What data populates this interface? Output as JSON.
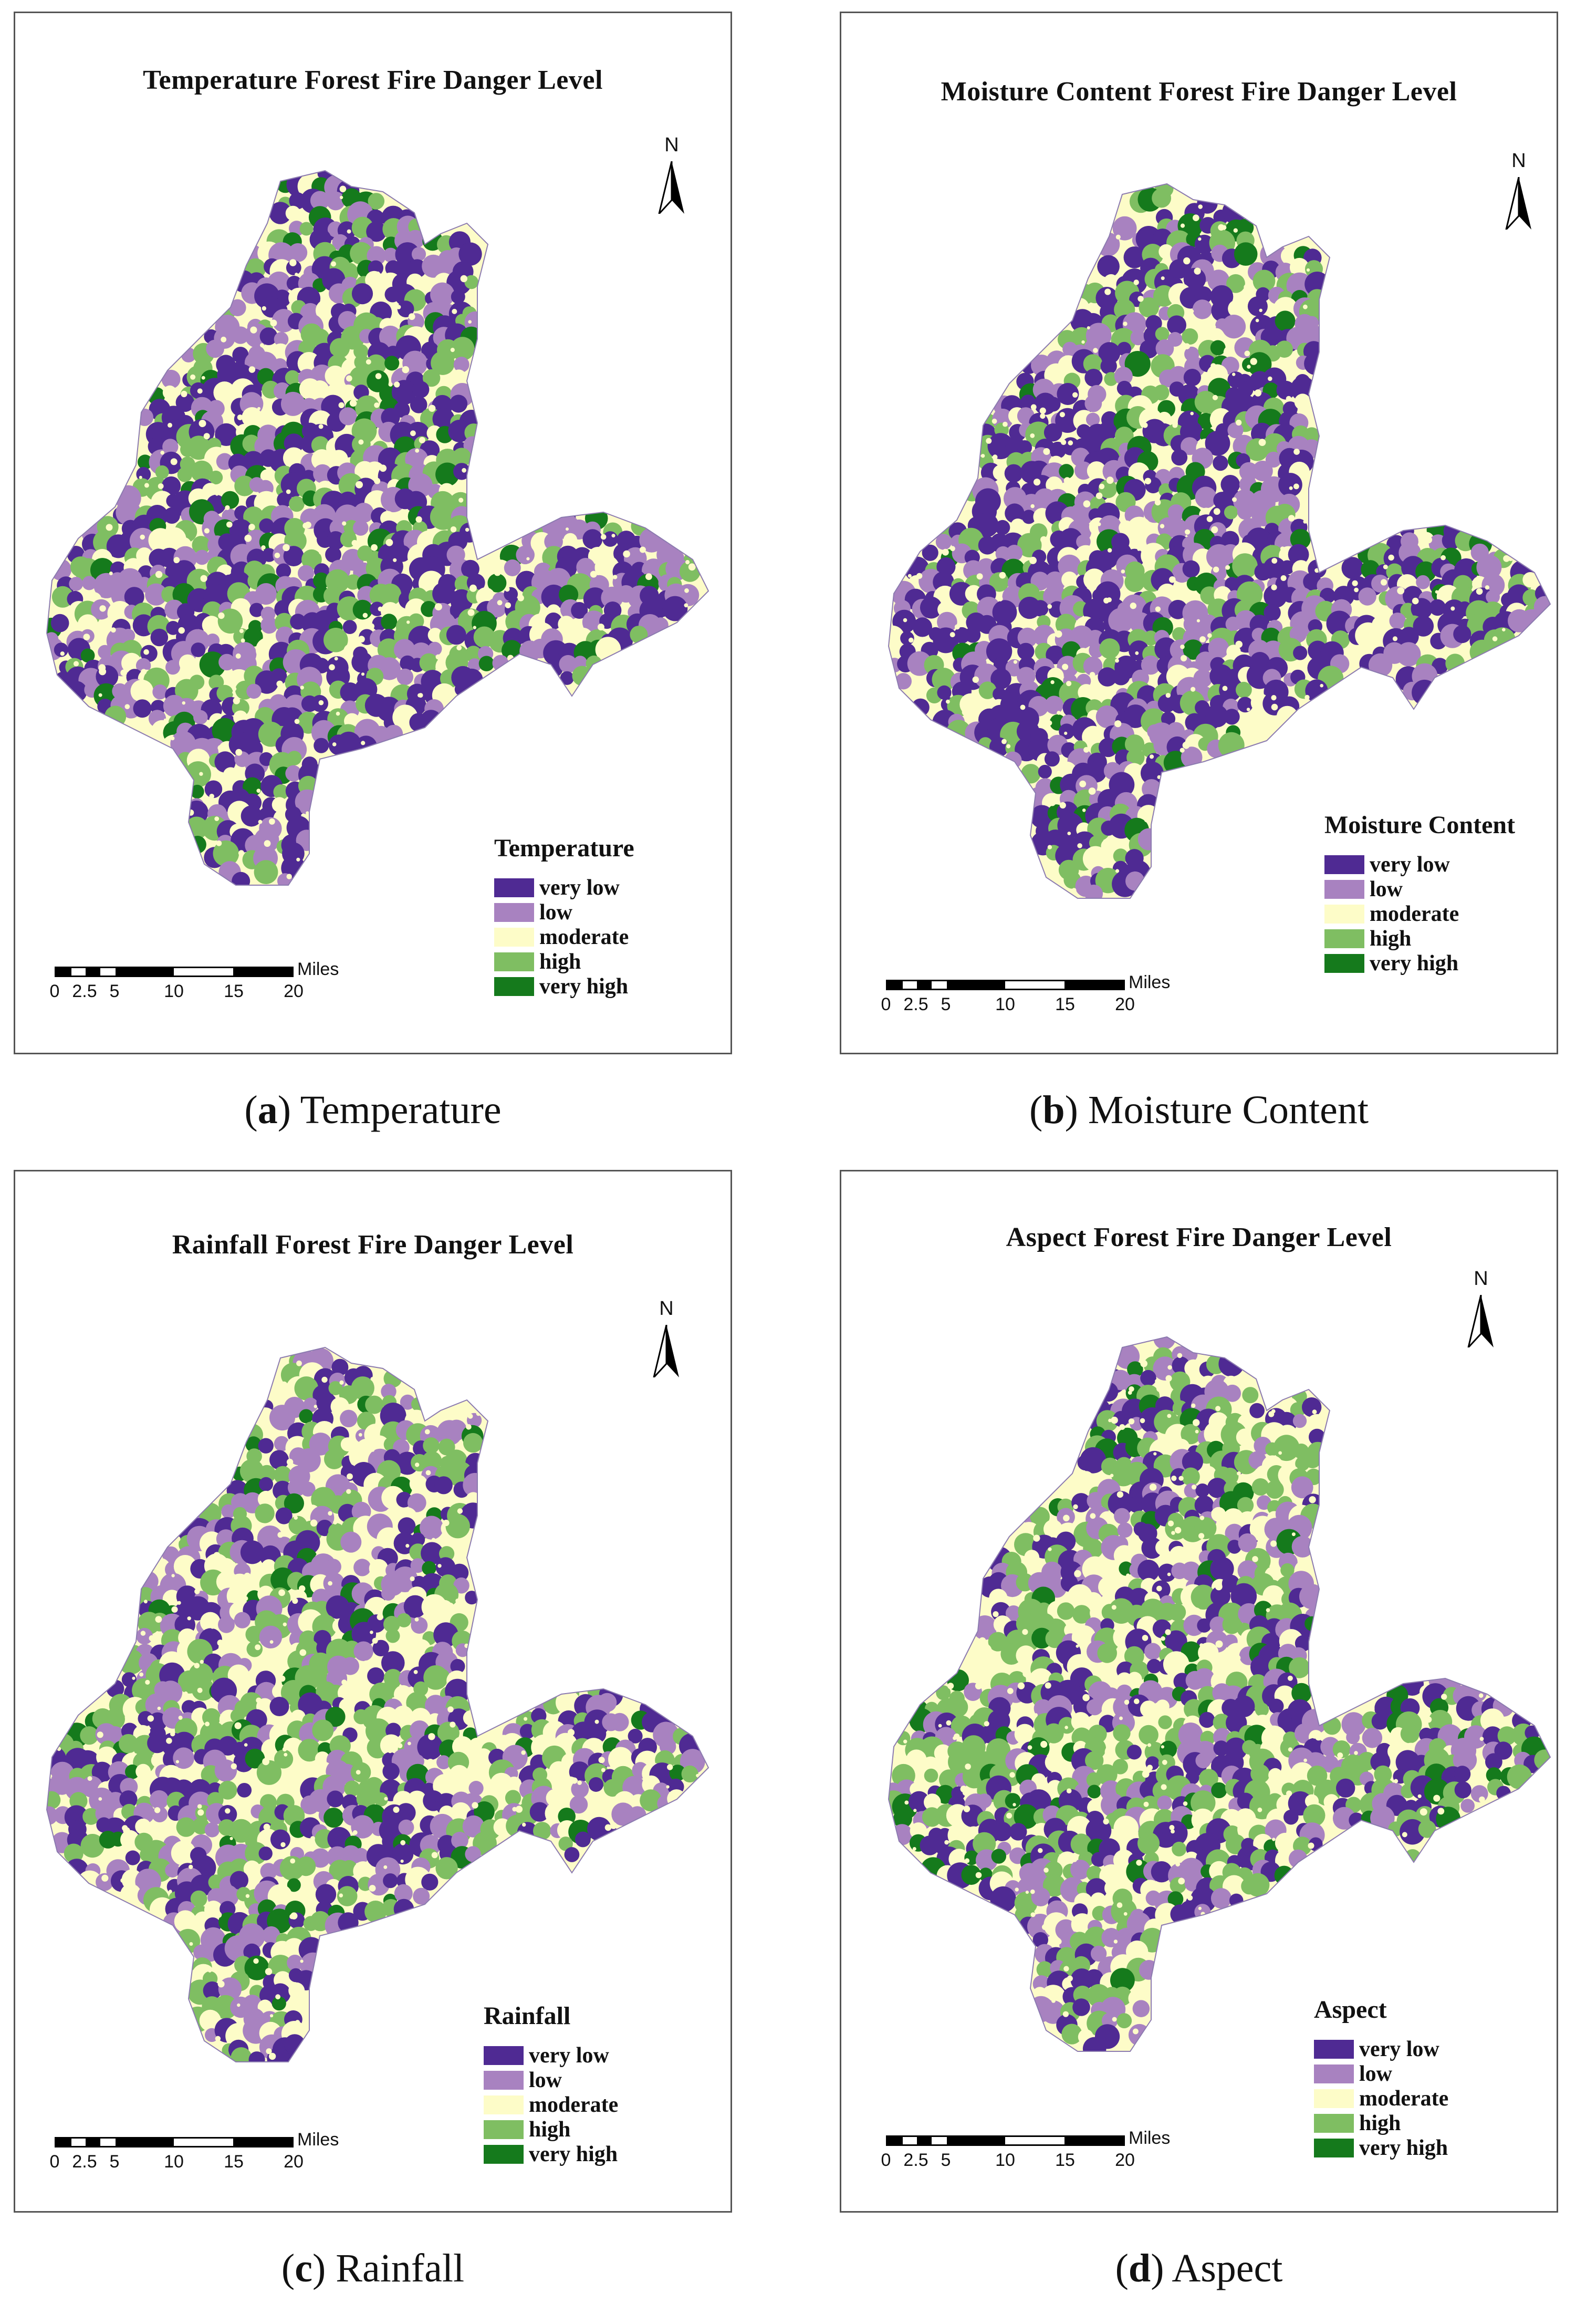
{
  "colors": {
    "very_low": "#4f2a93",
    "low": "#a882c0",
    "moderate": "#fdfcc8",
    "high": "#7fbe62",
    "very_high": "#157a1c"
  },
  "legend_classes": [
    "very low",
    "low",
    "moderate",
    "high",
    "very high"
  ],
  "scale": {
    "unit": "Miles",
    "ticks": [
      "0",
      "2.5",
      "5",
      "10",
      "15",
      "20"
    ]
  },
  "north_label": "N",
  "panels": [
    {
      "letter": "a",
      "caption": "Temperature",
      "title": "Temperature Forest Fire Danger Level",
      "legend_title": "Temperature"
    },
    {
      "letter": "b",
      "caption": "Moisture Content",
      "title": "Moisture Content Forest Fire Danger Level",
      "legend_title": "Moisture Content"
    },
    {
      "letter": "c",
      "caption": "Rainfall",
      "title": "Rainfall Forest Fire Danger Level",
      "legend_title": "Rainfall"
    },
    {
      "letter": "d",
      "caption": "Aspect",
      "title": "Aspect Forest Fire Danger Level",
      "legend_title": "Aspect"
    }
  ]
}
